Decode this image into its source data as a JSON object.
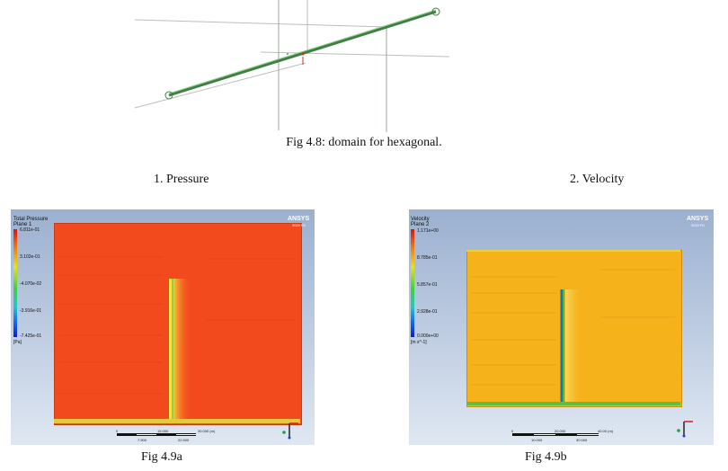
{
  "top_figure": {
    "caption": "Fig 4.8: domain for hexagonal."
  },
  "sections": [
    {
      "label": "1. Pressure"
    },
    {
      "label": "2. Velocity"
    }
  ],
  "panel_a": {
    "caption": "Fig 4.9a",
    "legend_title_1": "Total Pressure",
    "legend_title_2": "Plane 1",
    "legend_values": [
      "6.811e-01",
      "3.102e-01",
      "-4.070e-02",
      "-3.916e-01",
      "-7.425e-01"
    ],
    "unit": "[Pa]",
    "brand": "ANSYS",
    "brand_sub": "2020 R1",
    "scale_top": [
      "0",
      "15.000",
      "30.000 (m)"
    ],
    "scale_bottom": [
      "7.500",
      "22.500"
    ],
    "field_color": "#f24a1c"
  },
  "panel_b": {
    "caption": "Fig 4.9b",
    "legend_title_1": "Velocity",
    "legend_title_2": "Plane 2",
    "legend_values": [
      "1.171e+00",
      "8.785e-01",
      "5.857e-01",
      "2.928e-01",
      "0.000e+00"
    ],
    "unit": "[m s^-1]",
    "brand": "ANSYS",
    "brand_sub": "2020 R1",
    "scale_top": [
      "0",
      "20.000",
      "40.00 (m)"
    ],
    "scale_bottom": [
      "10.000",
      "30.000"
    ],
    "field_color": "#f5b21a"
  }
}
